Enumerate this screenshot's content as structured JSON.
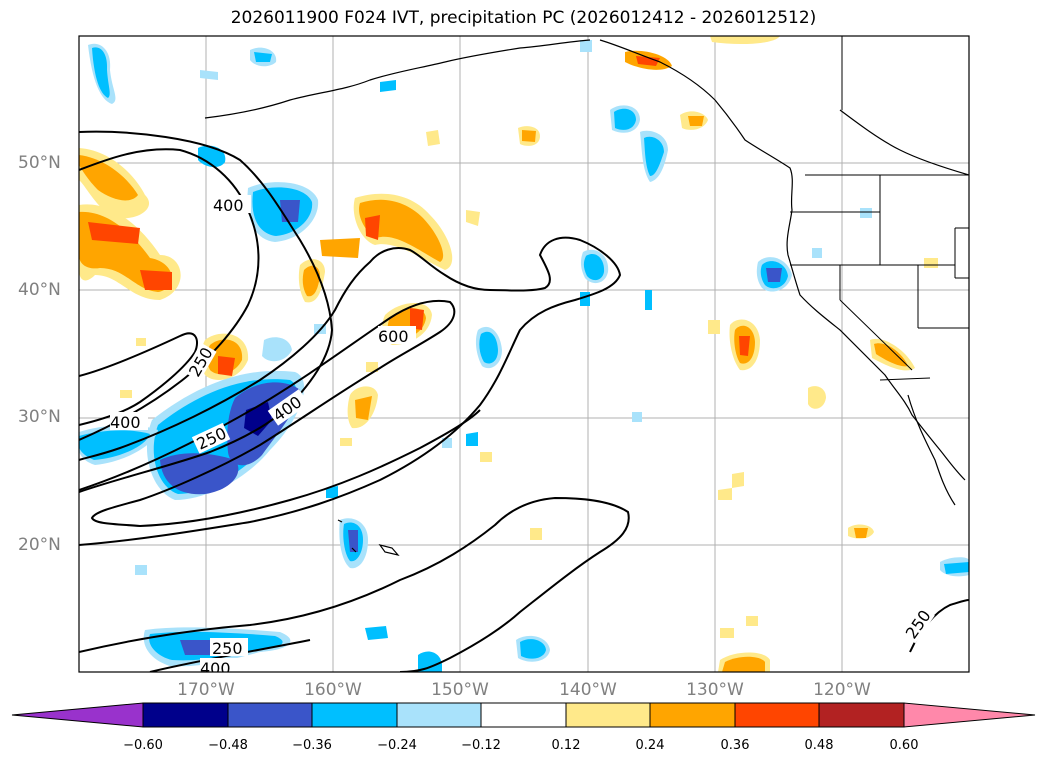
{
  "title": "2026011900 F024 IVT, precipitation PC (2026012412 - 2026012512)",
  "lat_labels": [
    "50°N",
    "40°N",
    "30°N",
    "20°N"
  ],
  "lon_labels": [
    "170°W",
    "160°W",
    "150°W",
    "140°W",
    "130°W",
    "120°W"
  ],
  "contour_labels": [
    "400",
    "250",
    "400",
    "250",
    "400",
    "600",
    "250",
    "400",
    "250"
  ],
  "colorbar": {
    "ticks": [
      "−0.60",
      "−0.48",
      "−0.36",
      "−0.24",
      "−0.12",
      "0.12",
      "0.24",
      "0.36",
      "0.48",
      "0.60"
    ],
    "colors": [
      "#9932cc",
      "#00008b",
      "#3a55c9",
      "#00bfff",
      "#a9e2fb",
      "#ffffff",
      "#ffe98a",
      "#ffa500",
      "#ff4500",
      "#b22222",
      "#ff88aa"
    ]
  }
}
